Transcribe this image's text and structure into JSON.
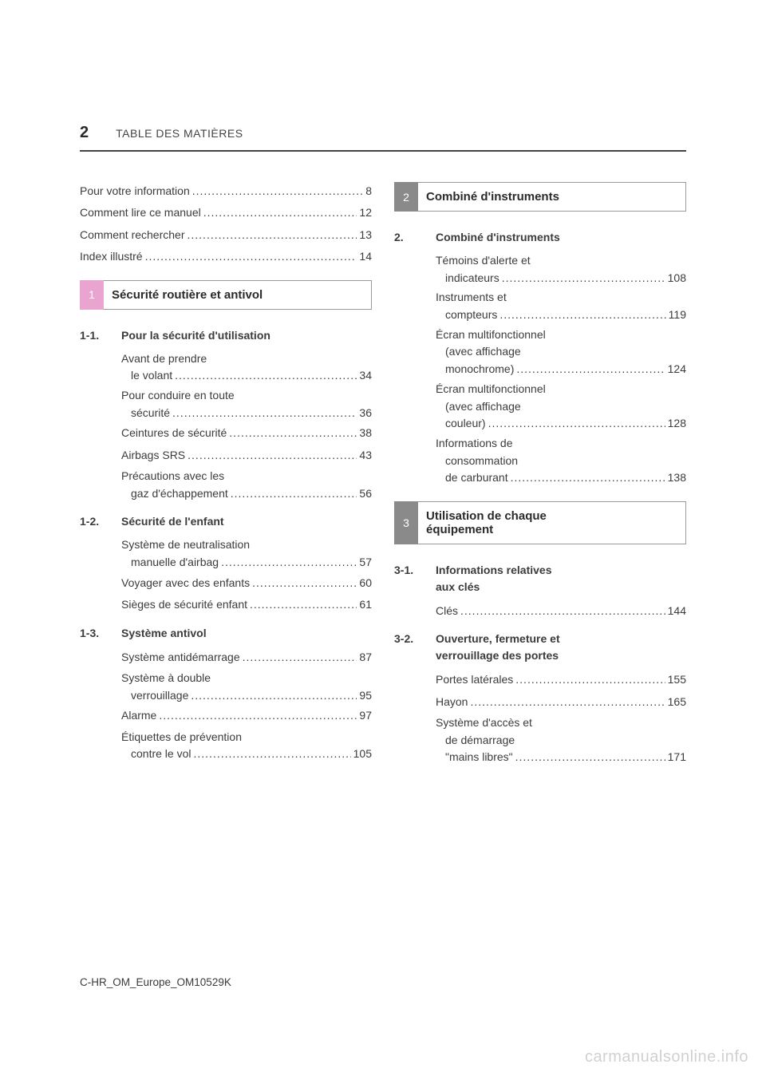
{
  "page_number": "2",
  "header_title": "TABLE DES MATIÈRES",
  "footer_code": "C-HR_OM_Europe_OM10529K",
  "watermark": "carmanualsonline.info",
  "colors": {
    "tab_pink": "#e9a5d0",
    "tab_gray": "#8a8a8a",
    "text": "#3b3b3b",
    "rule": "#444444",
    "background": "#ffffff"
  },
  "intro": [
    {
      "label": "Pour votre information",
      "pg": "8"
    },
    {
      "label": "Comment lire ce manuel",
      "pg": "12"
    },
    {
      "label": "Comment rechercher",
      "pg": "13"
    },
    {
      "label": "Index illustré",
      "pg": "14"
    }
  ],
  "sections": {
    "s1": {
      "tab": "1",
      "title": "Sécurité routière et antivol",
      "subs": {
        "a": {
          "num": "1-1.",
          "title": "Pour la sécurité d'utilisation",
          "items": [
            {
              "l1": "Avant de prendre",
              "l2": "le volant",
              "pg": "34"
            },
            {
              "l1": "Pour conduire en toute",
              "l2": "sécurité",
              "pg": "36"
            },
            {
              "single": "Ceintures de sécurité",
              "pg": "38"
            },
            {
              "single": "Airbags SRS",
              "pg": "43"
            },
            {
              "l1": "Précautions avec les",
              "l2": "gaz d'échappement",
              "pg": "56"
            }
          ]
        },
        "b": {
          "num": "1-2.",
          "title": "Sécurité de l'enfant",
          "items": [
            {
              "l1": "Système de neutralisation",
              "l2": "manuelle d'airbag",
              "pg": "57"
            },
            {
              "single": "Voyager avec des enfants",
              "pg": "60"
            },
            {
              "single": "Sièges de sécurité enfant",
              "pg": "61"
            }
          ]
        },
        "c": {
          "num": "1-3.",
          "title": "Système antivol",
          "items": [
            {
              "single": "Système antidémarrage",
              "pg": "87"
            },
            {
              "l1": "Système à double",
              "l2": "verrouillage",
              "pg": "95"
            },
            {
              "single": "Alarme",
              "pg": "97"
            },
            {
              "l1": "Étiquettes de prévention",
              "l2": "contre le vol",
              "pg": "105"
            }
          ]
        }
      }
    },
    "s2": {
      "tab": "2",
      "title": "Combiné d'instruments",
      "subs": {
        "a": {
          "num": "2.",
          "title": "Combiné d'instruments",
          "items": [
            {
              "l1": "Témoins d'alerte et",
              "l2": "indicateurs",
              "pg": "108"
            },
            {
              "l1": "Instruments et",
              "l2": "compteurs",
              "pg": "119"
            },
            {
              "l1": "Écran multifonctionnel",
              "l2": "(avec affichage",
              "l3": "monochrome)",
              "pg": "124"
            },
            {
              "l1": "Écran multifonctionnel",
              "l2": "(avec affichage",
              "l3": "couleur)",
              "pg": "128"
            },
            {
              "l1": "Informations de",
              "l2": "consommation",
              "l3": "de carburant",
              "pg": "138"
            }
          ]
        }
      }
    },
    "s3": {
      "tab": "3",
      "title_l1": "Utilisation de chaque",
      "title_l2": "équipement",
      "subs": {
        "a": {
          "num": "3-1.",
          "title_l1": "Informations relatives",
          "title_l2": "aux clés",
          "items": [
            {
              "single": "Clés",
              "pg": "144"
            }
          ]
        },
        "b": {
          "num": "3-2.",
          "title_l1": "Ouverture, fermeture et",
          "title_l2": "verrouillage des portes",
          "items": [
            {
              "single": "Portes latérales",
              "pg": "155"
            },
            {
              "single": "Hayon",
              "pg": "165"
            },
            {
              "l1": "Système d'accès et",
              "l2": "de démarrage",
              "l3": "\"mains libres\"",
              "pg": "171"
            }
          ]
        }
      }
    }
  }
}
